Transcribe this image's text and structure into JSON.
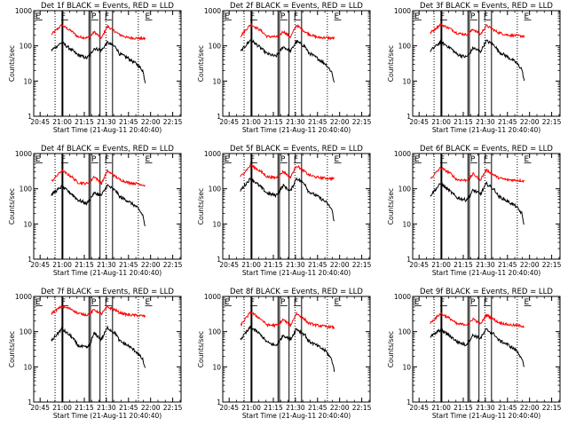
{
  "panel_titles": [
    "Det 1f BLACK = Events, RED = LLD",
    "Det 2f BLACK = Events, RED = LLD",
    "Det 3f BLACK = Events, RED = LLD",
    "Det 4f BLACK = Events, RED = LLD",
    "Det 5f BLACK = Events, RED = LLD",
    "Det 6f BLACK = Events, RED = LLD",
    "Det 7f BLACK = Events, RED = LLD",
    "Det 8f BLACK = Events, RED = LLD",
    "Det 9f BLACK = Events, RED = LLD"
  ],
  "xlabel": "Start Time (21-Aug-11 20:40:40)",
  "ylabel": "Counts/sec",
  "colors": {
    "events": "#000000",
    "lld": "#ff0000"
  },
  "chart_data": {
    "type": "line",
    "layout": "3x3 grid",
    "x_unit": "minutes since 20:40:40",
    "xlim": [
      0,
      100
    ],
    "x_ticks": [
      4.33,
      19.33,
      34.33,
      49.33,
      64.33,
      79.33,
      94.33
    ],
    "x_tick_labels": [
      "20:45",
      "21:00",
      "21:15",
      "21:30",
      "21:45",
      "22:00",
      "22:15"
    ],
    "y_scale": "log",
    "ylim": [
      1,
      1000
    ],
    "y_ticks": [
      1,
      10,
      100,
      1000
    ],
    "y_tick_labels": [
      "1",
      "10",
      "100",
      "1000"
    ],
    "markers": {
      "E": [
        0.5,
        75
      ],
      "F": [
        18,
        47.5
      ],
      "P": [
        38.5
      ]
    },
    "dotted_lines": [
      14.5,
      49,
      71
    ],
    "solid_lines": [
      19.5,
      37.5,
      38.5,
      45,
      53.5
    ],
    "series_x": [
      12,
      19,
      26,
      30,
      36,
      38,
      41,
      46,
      50,
      56,
      58,
      64,
      70,
      74,
      76
    ],
    "panels": [
      {
        "lld": [
          210,
          390,
          255,
          180,
          170,
          175,
          250,
          165,
          360,
          245,
          210,
          170,
          165,
          160,
          160
        ],
        "events": [
          75,
          125,
          75,
          55,
          45,
          55,
          85,
          75,
          125,
          90,
          60,
          45,
          30,
          20,
          8
        ]
      },
      {
        "lld": [
          190,
          410,
          270,
          185,
          180,
          185,
          260,
          175,
          390,
          250,
          220,
          175,
          170,
          165,
          165
        ],
        "events": [
          68,
          150,
          85,
          60,
          50,
          62,
          95,
          70,
          135,
          95,
          65,
          45,
          30,
          18,
          8
        ]
      },
      {
        "lld": [
          235,
          410,
          300,
          230,
          210,
          220,
          300,
          210,
          380,
          270,
          240,
          205,
          195,
          190,
          185
        ],
        "events": [
          72,
          130,
          85,
          58,
          48,
          55,
          88,
          68,
          140,
          100,
          70,
          50,
          34,
          22,
          9
        ]
      },
      {
        "lld": [
          160,
          330,
          215,
          150,
          140,
          150,
          225,
          140,
          320,
          215,
          185,
          150,
          140,
          130,
          120
        ],
        "events": [
          68,
          115,
          70,
          48,
          38,
          50,
          75,
          65,
          125,
          85,
          60,
          45,
          30,
          18,
          7
        ]
      },
      {
        "lld": [
          220,
          470,
          305,
          220,
          205,
          225,
          310,
          210,
          460,
          300,
          250,
          210,
          200,
          195,
          190
        ],
        "events": [
          90,
          200,
          110,
          75,
          65,
          78,
          125,
          85,
          200,
          135,
          85,
          62,
          42,
          26,
          10
        ]
      },
      {
        "lld": [
          190,
          400,
          265,
          180,
          175,
          185,
          265,
          180,
          340,
          235,
          205,
          180,
          175,
          170,
          165
        ],
        "events": [
          65,
          140,
          80,
          56,
          48,
          56,
          92,
          70,
          140,
          90,
          62,
          45,
          32,
          20,
          8
        ]
      },
      {
        "lld": [
          330,
          520,
          430,
          330,
          300,
          320,
          420,
          320,
          500,
          400,
          350,
          300,
          290,
          280,
          270
        ],
        "events": [
          55,
          120,
          70,
          40,
          35,
          42,
          90,
          60,
          130,
          85,
          55,
          40,
          26,
          16,
          8
        ]
      },
      {
        "lld": [
          150,
          360,
          225,
          155,
          150,
          160,
          220,
          150,
          330,
          215,
          175,
          150,
          140,
          135,
          130
        ],
        "events": [
          60,
          135,
          80,
          50,
          40,
          50,
          80,
          60,
          120,
          80,
          55,
          40,
          28,
          16,
          7
        ]
      },
      {
        "lld": [
          175,
          330,
          225,
          165,
          160,
          165,
          235,
          160,
          300,
          210,
          185,
          160,
          150,
          145,
          140
        ],
        "events": [
          70,
          115,
          72,
          52,
          42,
          52,
          80,
          64,
          115,
          80,
          58,
          44,
          30,
          18,
          8
        ]
      }
    ]
  }
}
